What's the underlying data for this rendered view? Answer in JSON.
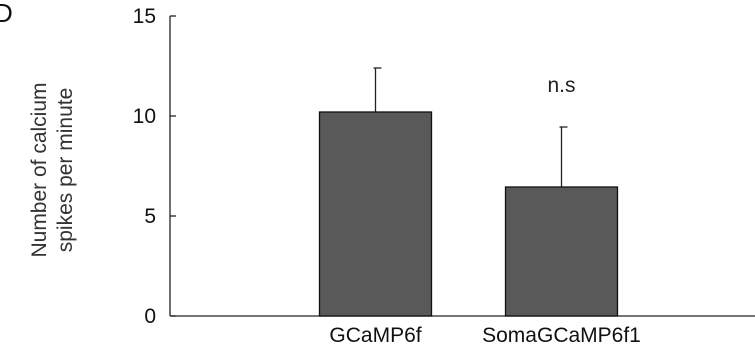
{
  "chart_data": {
    "type": "bar",
    "panel_label": "D",
    "categories": [
      "GCaMP6f",
      "SomaGCaMP6f1"
    ],
    "values": [
      10.2,
      6.45
    ],
    "error_upper": [
      2.2,
      3.0
    ],
    "ylabel_line1": "Number of calcium",
    "ylabel_line2": "spikes per minute",
    "ylim": [
      0,
      15
    ],
    "yticks": [
      "0",
      "5",
      "10",
      "15"
    ],
    "annotations": [
      {
        "text": "n.s",
        "category": "SomaGCaMP6f1"
      }
    ],
    "bar_color": "#595959",
    "grid": false
  }
}
